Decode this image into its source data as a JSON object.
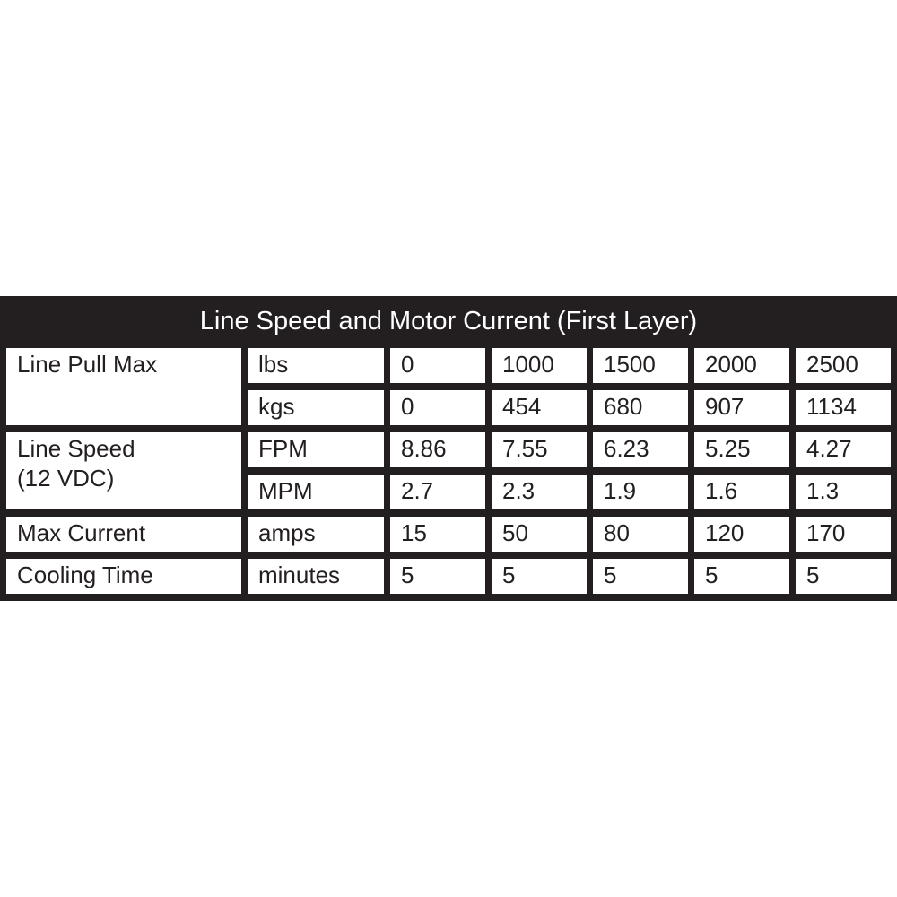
{
  "title": "Line Speed and Motor Current (First Layer)",
  "colors": {
    "header_bg": "#231f20",
    "grid_bg": "#231f20",
    "cell_bg": "#ffffff",
    "header_text": "#ffffff",
    "cell_text": "#231f20",
    "page_bg": "#ffffff"
  },
  "chart_data": {
    "type": "table",
    "title": "Line Speed and Motor Current (First Layer)",
    "layout": {
      "title_position": "top-center",
      "columns": 7,
      "value_columns": 5,
      "grid": "black gutters between white cells"
    },
    "row_groups": [
      {
        "label": "Line Pull Max",
        "label_lines": [
          "Line Pull Max"
        ],
        "rows": [
          {
            "unit": "lbs",
            "values": [
              0,
              1000,
              1500,
              2000,
              2500
            ]
          },
          {
            "unit": "kgs",
            "values": [
              0,
              454,
              680,
              907,
              1134
            ]
          }
        ]
      },
      {
        "label": "Line Speed (12 VDC)",
        "label_lines": [
          "Line Speed",
          "(12 VDC)"
        ],
        "rows": [
          {
            "unit": "FPM",
            "values": [
              8.86,
              7.55,
              6.23,
              5.25,
              4.27
            ]
          },
          {
            "unit": "MPM",
            "values": [
              2.7,
              2.3,
              1.9,
              1.6,
              1.3
            ]
          }
        ]
      },
      {
        "label": "Max Current",
        "label_lines": [
          "Max Current"
        ],
        "rows": [
          {
            "unit": "amps",
            "values": [
              15,
              50,
              80,
              120,
              170
            ]
          }
        ]
      },
      {
        "label": "Cooling Time",
        "label_lines": [
          "Cooling Time"
        ],
        "rows": [
          {
            "unit": "minutes",
            "values": [
              5,
              5,
              5,
              5,
              5
            ]
          }
        ]
      }
    ]
  }
}
